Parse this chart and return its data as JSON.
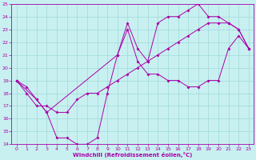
{
  "xlabel": "Windchill (Refroidissement éolien,°C)",
  "bg_color": "#c8f0f0",
  "grid_color": "#a0d8d8",
  "line_color": "#aa00aa",
  "xlim": [
    -0.5,
    23.5
  ],
  "ylim": [
    14,
    25
  ],
  "xticks": [
    0,
    1,
    2,
    3,
    4,
    5,
    6,
    7,
    8,
    9,
    10,
    11,
    12,
    13,
    14,
    15,
    16,
    17,
    18,
    19,
    20,
    21,
    22,
    23
  ],
  "yticks": [
    14,
    15,
    16,
    17,
    18,
    19,
    20,
    21,
    22,
    23,
    24,
    25
  ],
  "line1_x": [
    0,
    1,
    2,
    3,
    4,
    5,
    6,
    7,
    8,
    9,
    10,
    11,
    12,
    13,
    14,
    15,
    16,
    17,
    18,
    19,
    20,
    21,
    22,
    23
  ],
  "line1_y": [
    19.0,
    18.0,
    17.0,
    17.0,
    16.5,
    16.5,
    17.5,
    18.0,
    18.0,
    18.5,
    19.0,
    19.5,
    20.0,
    20.5,
    21.0,
    21.5,
    22.0,
    22.5,
    23.0,
    23.5,
    23.5,
    23.5,
    23.0,
    21.5
  ],
  "line2_x": [
    0,
    1,
    2,
    3,
    4,
    5,
    6,
    7,
    8,
    9,
    10,
    11,
    12,
    13,
    14,
    15,
    16,
    17,
    18,
    19,
    20,
    21,
    22,
    23
  ],
  "line2_y": [
    19.0,
    18.5,
    17.5,
    16.5,
    14.5,
    14.5,
    14.0,
    14.0,
    14.5,
    18.0,
    21.0,
    23.0,
    20.5,
    19.5,
    19.5,
    19.0,
    19.0,
    18.5,
    18.5,
    19.0,
    19.0,
    21.5,
    22.5,
    21.5
  ],
  "line3_x": [
    0,
    2,
    3,
    10,
    11,
    12,
    13,
    14,
    15,
    16,
    17,
    18,
    19,
    20,
    21,
    22,
    23
  ],
  "line3_y": [
    19.0,
    17.5,
    16.5,
    21.0,
    23.5,
    21.5,
    20.5,
    23.5,
    24.0,
    24.0,
    24.5,
    25.0,
    24.0,
    24.0,
    23.5,
    23.0,
    21.5
  ]
}
